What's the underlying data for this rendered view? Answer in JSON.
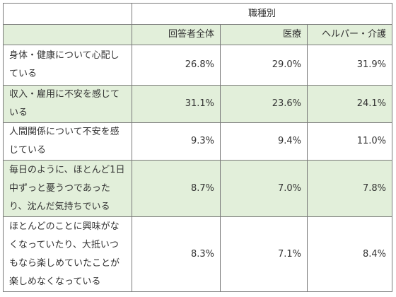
{
  "table": {
    "group_header": "職種別",
    "columns": [
      "回答者全体",
      "医療",
      "ヘルパー・介護"
    ],
    "rows": [
      {
        "label": "身体・健康について心配している",
        "values": [
          "26.8%",
          "29.0%",
          "31.9%"
        ]
      },
      {
        "label": "収入・雇用に不安を感じている",
        "values": [
          "31.1%",
          "23.6%",
          "24.1%"
        ]
      },
      {
        "label": "人間関係について不安を感じている",
        "values": [
          "9.3%",
          "9.4%",
          "11.0%"
        ]
      },
      {
        "label": "毎日のように、ほとんど1日中ずっと憂うつであったり、沈んだ気持ちでいる",
        "values": [
          "8.7%",
          "7.0%",
          "7.8%"
        ]
      },
      {
        "label": "ほとんどのことに興味がなくなっていたり、大抵いつもなら楽しめていたことが楽しめなくなっている",
        "values": [
          "8.3%",
          "7.1%",
          "8.4%"
        ]
      }
    ]
  }
}
